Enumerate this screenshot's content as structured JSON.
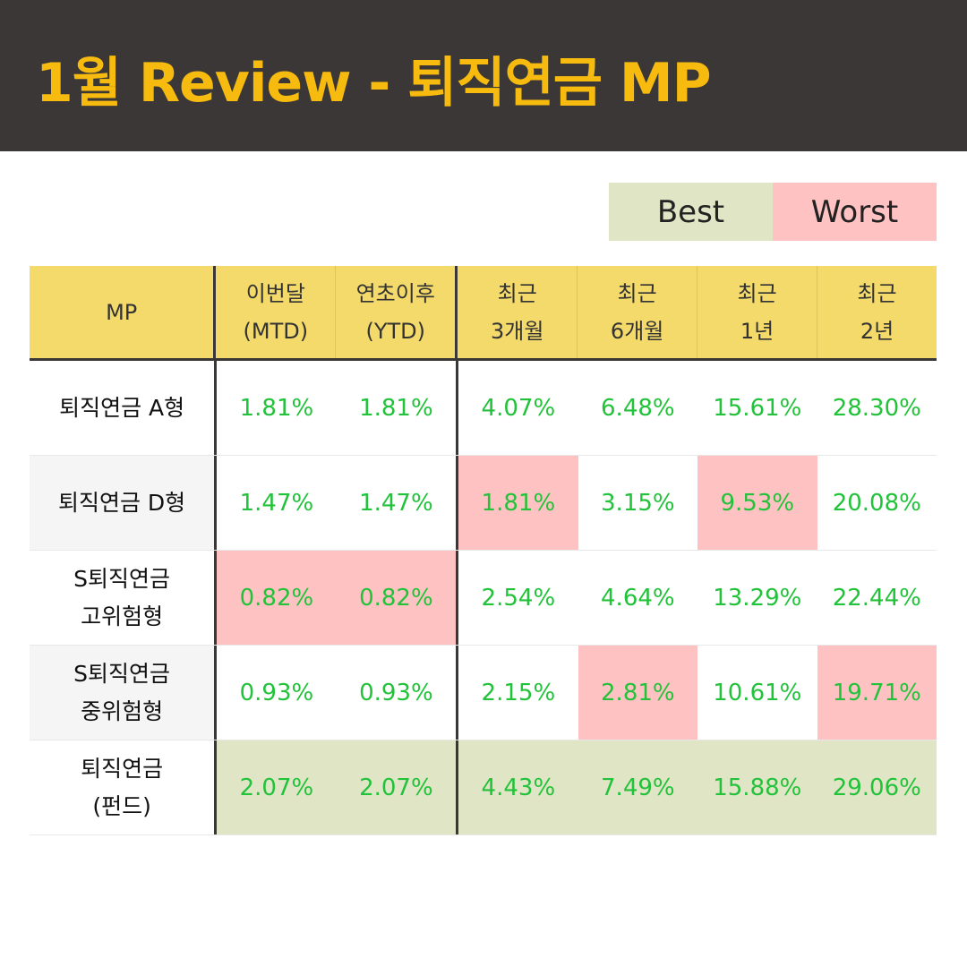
{
  "title": "1월 Review - 퇴직연금 MP",
  "legend": {
    "best": "Best",
    "worst": "Worst",
    "best_color": "#e0e6c5",
    "worst_color": "#ffc2c2"
  },
  "table": {
    "headers": [
      "MP",
      "이번달\n(MTD)",
      "연초이후\n(YTD)",
      "최근\n3개월",
      "최근\n6개월",
      "최근\n1년",
      "최근\n2년"
    ],
    "rows": [
      {
        "name": "퇴직연금 A형",
        "values": [
          "1.81%",
          "1.81%",
          "4.07%",
          "6.48%",
          "15.61%",
          "28.30%"
        ]
      },
      {
        "name": "퇴직연금 D형",
        "values": [
          "1.47%",
          "1.47%",
          "1.81%",
          "3.15%",
          "9.53%",
          "20.08%"
        ]
      },
      {
        "name": "S퇴직연금\n고위험형",
        "values": [
          "0.82%",
          "0.82%",
          "2.54%",
          "4.64%",
          "13.29%",
          "22.44%"
        ]
      },
      {
        "name": "S퇴직연금\n중위험형",
        "values": [
          "0.93%",
          "0.93%",
          "2.15%",
          "2.81%",
          "10.61%",
          "19.71%"
        ]
      },
      {
        "name": "퇴직연금\n(펀드)",
        "values": [
          "2.07%",
          "2.07%",
          "4.43%",
          "7.49%",
          "15.88%",
          "29.06%"
        ]
      }
    ]
  }
}
